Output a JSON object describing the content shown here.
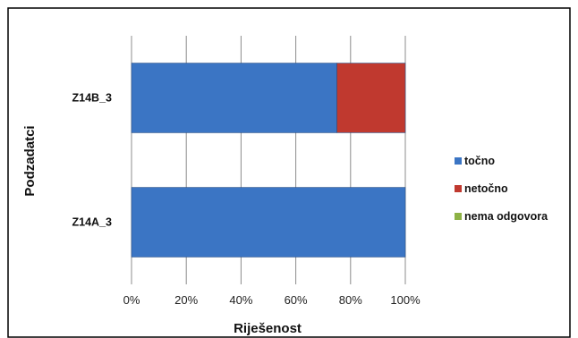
{
  "chart_data": {
    "type": "bar",
    "orientation": "horizontal",
    "stacked": true,
    "percent_stacked": true,
    "categories": [
      "Z14B_3",
      "Z14A_3"
    ],
    "series": [
      {
        "name": "točno",
        "values": [
          75,
          100
        ],
        "color": "#3B75C4"
      },
      {
        "name": "netočno",
        "values": [
          25,
          0
        ],
        "color": "#C0392F"
      },
      {
        "name": "nema odgovora",
        "values": [
          0,
          0
        ],
        "color": "#8DB245"
      }
    ],
    "xlim": [
      0,
      100
    ],
    "xticks": [
      "0%",
      "20%",
      "40%",
      "60%",
      "80%",
      "100%"
    ],
    "xlabel": "Riješenost",
    "ylabel": "Podzadatci",
    "grid": "vertical",
    "legend_position": "right"
  }
}
